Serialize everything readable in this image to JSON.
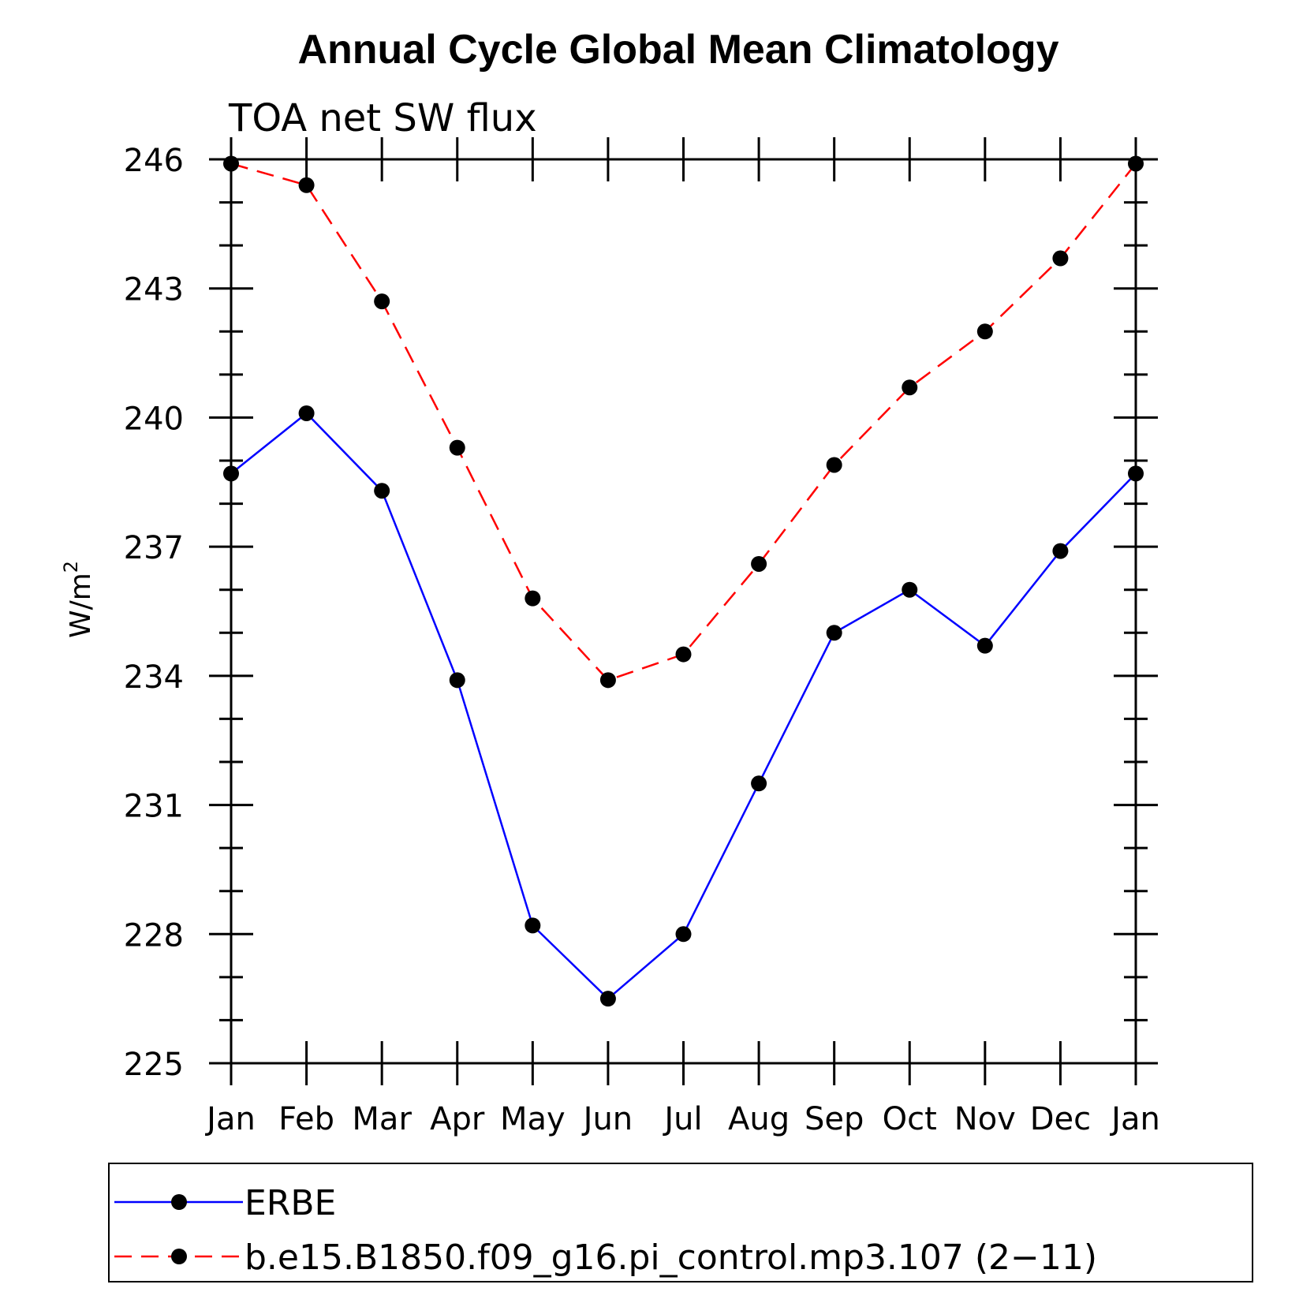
{
  "chart_data": {
    "type": "line",
    "title": "Annual Cycle Global Mean Climatology",
    "subtitle": "TOA net SW flux",
    "xlabel": "",
    "ylabel": "W/m",
    "ylabel_superscript": "2",
    "categories": [
      "Jan",
      "Feb",
      "Mar",
      "Apr",
      "May",
      "Jun",
      "Jul",
      "Aug",
      "Sep",
      "Oct",
      "Nov",
      "Dec",
      "Jan"
    ],
    "yticks": [
      "225",
      "228",
      "231",
      "234",
      "237",
      "240",
      "243",
      "246"
    ],
    "ylim": [
      225,
      246
    ],
    "series": [
      {
        "name": "ERBE",
        "color": "#0000ff",
        "dash": "solid",
        "values": [
          238.7,
          240.1,
          238.3,
          233.9,
          228.2,
          226.5,
          228.0,
          231.5,
          235.0,
          236.0,
          234.7,
          236.9,
          238.7
        ]
      },
      {
        "name": "b.e15.B1850.f09_g16.pi_control.mp3.107 (2−11)",
        "color": "#ff0000",
        "dash": "dashed",
        "values": [
          245.9,
          245.4,
          242.7,
          239.3,
          235.8,
          233.9,
          234.5,
          236.6,
          238.9,
          240.7,
          242.0,
          243.7,
          245.9
        ]
      }
    ],
    "marker_color": "#000000"
  }
}
